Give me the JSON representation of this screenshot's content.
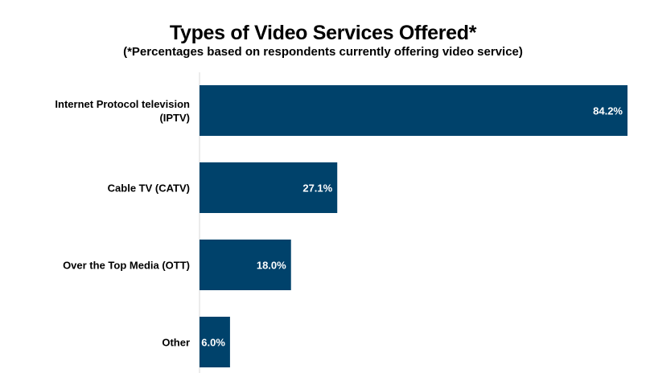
{
  "chart_data": {
    "type": "bar",
    "orientation": "horizontal",
    "title": "Types of Video Services Offered*",
    "subtitle": "(*Percentages based on respondents currently offering video service)",
    "categories": [
      [
        "Internet Protocol television",
        "(IPTV)"
      ],
      [
        "Cable TV (CATV)"
      ],
      [
        "Over the Top Media (OTT)"
      ],
      [
        "Other"
      ]
    ],
    "values": [
      84.2,
      27.1,
      18.0,
      6.0
    ],
    "labels": [
      "84.2%",
      "27.1%",
      "18.0%",
      "6.0%"
    ],
    "xlim": [
      0,
      84.2
    ],
    "grid": false,
    "bar_color": "#00426b"
  }
}
